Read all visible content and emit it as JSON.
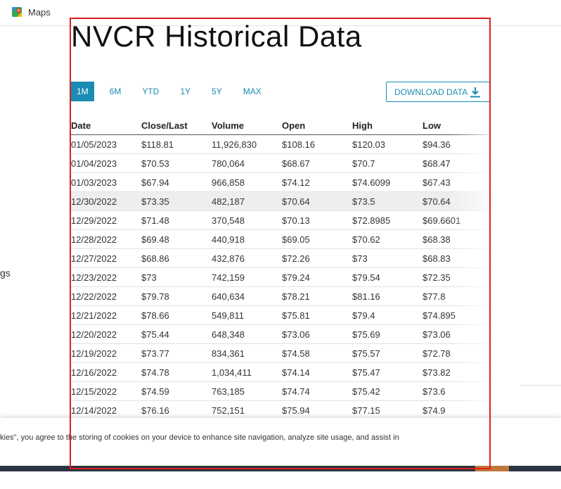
{
  "bookmarks": {
    "maps_label": "Maps"
  },
  "left_fragment": "gs",
  "title": "NVCR Historical Data",
  "range_tabs": [
    "1M",
    "6M",
    "YTD",
    "1Y",
    "5Y",
    "MAX"
  ],
  "active_tab": "1M",
  "download_label": "DOWNLOAD DATA",
  "table": {
    "columns": [
      "Date",
      "Close/Last",
      "Volume",
      "Open",
      "High",
      "Low"
    ],
    "rows": [
      [
        "01/05/2023",
        "$118.81",
        "11,926,830",
        "$108.16",
        "$120.03",
        "$94.36"
      ],
      [
        "01/04/2023",
        "$70.53",
        "780,064",
        "$68.67",
        "$70.7",
        "$68.47"
      ],
      [
        "01/03/2023",
        "$67.94",
        "966,858",
        "$74.12",
        "$74.6099",
        "$67.43"
      ],
      [
        "12/30/2022",
        "$73.35",
        "482,187",
        "$70.64",
        "$73.5",
        "$70.64"
      ],
      [
        "12/29/2022",
        "$71.48",
        "370,548",
        "$70.13",
        "$72.8985",
        "$69.6601"
      ],
      [
        "12/28/2022",
        "$69.48",
        "440,918",
        "$69.05",
        "$70.62",
        "$68.38"
      ],
      [
        "12/27/2022",
        "$68.86",
        "432,876",
        "$72.26",
        "$73",
        "$68.83"
      ],
      [
        "12/23/2022",
        "$73",
        "742,159",
        "$79.24",
        "$79.54",
        "$72.35"
      ],
      [
        "12/22/2022",
        "$79.78",
        "640,634",
        "$78.21",
        "$81.16",
        "$77.8"
      ],
      [
        "12/21/2022",
        "$78.66",
        "549,811",
        "$75.81",
        "$79.4",
        "$74.895"
      ],
      [
        "12/20/2022",
        "$75.44",
        "648,348",
        "$73.06",
        "$75.69",
        "$73.06"
      ],
      [
        "12/19/2022",
        "$73.77",
        "834,361",
        "$74.58",
        "$75.57",
        "$72.78"
      ],
      [
        "12/16/2022",
        "$74.78",
        "1,034,411",
        "$74.14",
        "$75.47",
        "$73.82"
      ],
      [
        "12/15/2022",
        "$74.59",
        "763,185",
        "$74.74",
        "$75.42",
        "$73.6"
      ],
      [
        "12/14/2022",
        "$76.16",
        "752,151",
        "$75.94",
        "$77.15",
        "$74.9"
      ]
    ]
  },
  "cookie_text": "kies\", you agree to the storing of cookies on your device to enhance site navigation, analyze site usage, and assist in",
  "colors": {
    "accent": "#1a8cb3",
    "highlight_border": "#dd1f1f",
    "row_hover": "#eeeeee"
  },
  "icons": {
    "maps": "maps-icon",
    "download": "download-icon"
  }
}
